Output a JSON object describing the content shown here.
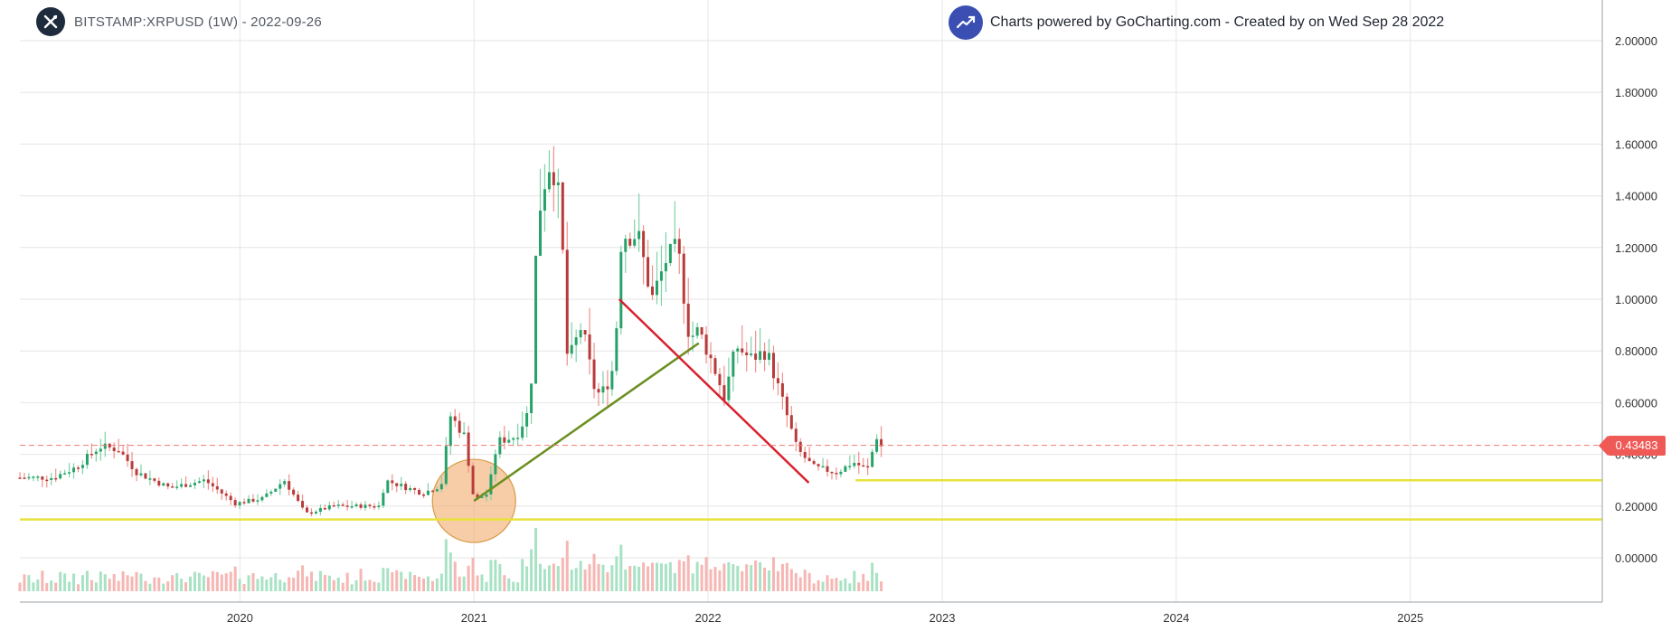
{
  "header": {
    "symbol": "BITSTAMP:XRPUSD (1W) - 2022-09-26",
    "credit": "Charts powered by GoCharting.com - Created by  on Wed Sep 28 2022"
  },
  "colors": {
    "up": "#26a269",
    "down": "#b83b3b",
    "vol_up": "#a8e2c4",
    "vol_down": "#f6b6b3",
    "grid": "#e6e6e6",
    "support": "#e8e23a",
    "trend_up": "#6b8f1f",
    "trend_down": "#d9202f",
    "highlight": "#f3b27a",
    "price_line": "#ef7b78"
  },
  "icons": {
    "symbol_logo": "xrp-logo-icon",
    "credit_logo": "trending-up-icon"
  },
  "chart_data": {
    "type": "candlestick",
    "timeframe": "1W",
    "x_ticks": [
      "2020",
      "2021",
      "2022",
      "2023",
      "2024",
      "2025"
    ],
    "y_ticks": [
      "2.00000",
      "1.80000",
      "1.60000",
      "1.40000",
      "1.20000",
      "1.00000",
      "0.80000",
      "0.60000",
      "0.40000",
      "0.20000",
      "0.00000"
    ],
    "ylim": [
      -0.1,
      2.15
    ],
    "xlim": [
      2019.06,
      2025.82
    ],
    "last_price": "0.43483",
    "ohlc_keypoints": [
      [
        2019.06,
        0.31
      ],
      [
        2019.2,
        0.31
      ],
      [
        2019.3,
        0.35
      ],
      [
        2019.4,
        0.43
      ],
      [
        2019.48,
        0.42
      ],
      [
        2019.56,
        0.33
      ],
      [
        2019.7,
        0.27
      ],
      [
        2019.85,
        0.3
      ],
      [
        2019.98,
        0.21
      ],
      [
        2020.1,
        0.23
      ],
      [
        2020.19,
        0.3
      ],
      [
        2020.28,
        0.17
      ],
      [
        2020.4,
        0.2
      ],
      [
        2020.6,
        0.2
      ],
      [
        2020.62,
        0.3
      ],
      [
        2020.78,
        0.25
      ],
      [
        2020.86,
        0.28
      ],
      [
        2020.9,
        0.55
      ],
      [
        2020.96,
        0.47
      ],
      [
        2021.0,
        0.22
      ],
      [
        2021.06,
        0.25
      ],
      [
        2021.1,
        0.45
      ],
      [
        2021.18,
        0.47
      ],
      [
        2021.24,
        0.58
      ],
      [
        2021.27,
        1.3
      ],
      [
        2021.3,
        1.45
      ],
      [
        2021.33,
        1.55
      ],
      [
        2021.37,
        1.35
      ],
      [
        2021.4,
        0.75
      ],
      [
        2021.46,
        0.9
      ],
      [
        2021.52,
        0.63
      ],
      [
        2021.56,
        0.65
      ],
      [
        2021.6,
        0.75
      ],
      [
        2021.63,
        1.25
      ],
      [
        2021.7,
        1.25
      ],
      [
        2021.76,
        1.0
      ],
      [
        2021.82,
        1.15
      ],
      [
        2021.87,
        1.2
      ],
      [
        2021.92,
        0.85
      ],
      [
        2021.96,
        0.88
      ],
      [
        2022.02,
        0.75
      ],
      [
        2022.07,
        0.62
      ],
      [
        2022.12,
        0.82
      ],
      [
        2022.18,
        0.77
      ],
      [
        2022.25,
        0.8
      ],
      [
        2022.32,
        0.6
      ],
      [
        2022.38,
        0.42
      ],
      [
        2022.45,
        0.35
      ],
      [
        2022.55,
        0.33
      ],
      [
        2022.62,
        0.37
      ],
      [
        2022.68,
        0.34
      ],
      [
        2022.72,
        0.47
      ],
      [
        2022.74,
        0.43
      ]
    ],
    "annotations": {
      "support_lines": [
        0.148,
        0.3
      ],
      "support_line_2_start": 2022.63,
      "trend_up": [
        [
          2021.0,
          0.22
        ],
        [
          2021.96,
          0.83
        ]
      ],
      "trend_down": [
        [
          2021.62,
          1.0
        ],
        [
          2022.43,
          0.29
        ]
      ],
      "highlight_circle": [
        2021.0,
        0.22
      ]
    }
  }
}
